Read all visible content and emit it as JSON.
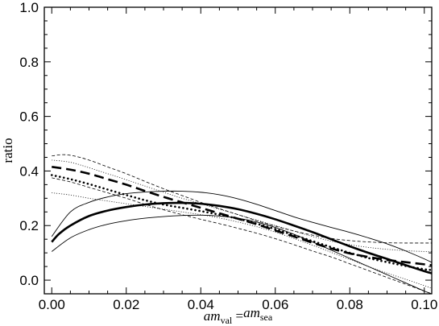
{
  "chart_data": {
    "type": "line",
    "title": "",
    "ylabel": "ratio",
    "xlabel": {
      "parts": [
        {
          "text": "am",
          "style": "italic"
        },
        {
          "text": "val",
          "style": "sub"
        },
        {
          "text": " =",
          "style": "normal"
        },
        {
          "text": "am",
          "style": "italic"
        },
        {
          "text": "sea",
          "style": "sub"
        }
      ]
    },
    "xlim": [
      -0.002,
      0.102
    ],
    "ylim": [
      -0.05,
      1.0
    ],
    "xticks": [
      0.0,
      0.02,
      0.04,
      0.06,
      0.08,
      0.1
    ],
    "xtick_labels": [
      "0.00",
      "0.02",
      "0.04",
      "0.06",
      "0.08",
      "0.10"
    ],
    "yticks": [
      0.0,
      0.2,
      0.4,
      0.6,
      0.8,
      1.0
    ],
    "ytick_labels": [
      "0.0",
      "0.2",
      "0.4",
      "0.6",
      "0.8",
      "1.0"
    ],
    "grid": false,
    "series": [
      {
        "style": "thick-solid",
        "x": [
          0.0,
          0.002,
          0.005,
          0.01,
          0.015,
          0.02,
          0.025,
          0.03,
          0.035,
          0.04,
          0.045,
          0.05,
          0.055,
          0.06,
          0.065,
          0.07,
          0.075,
          0.08,
          0.085,
          0.09,
          0.095,
          0.1,
          0.102
        ],
        "y": [
          0.14,
          0.17,
          0.2,
          0.235,
          0.255,
          0.268,
          0.277,
          0.282,
          0.283,
          0.28,
          0.272,
          0.26,
          0.243,
          0.223,
          0.2,
          0.176,
          0.15,
          0.124,
          0.1,
          0.078,
          0.055,
          0.033,
          0.025
        ]
      },
      {
        "style": "thin-solid-upper",
        "x": [
          0.0,
          0.005,
          0.01,
          0.015,
          0.02,
          0.025,
          0.03,
          0.035,
          0.04,
          0.045,
          0.05,
          0.055,
          0.06,
          0.065,
          0.07,
          0.075,
          0.08,
          0.085,
          0.09,
          0.095,
          0.1,
          0.102
        ],
        "y": [
          0.16,
          0.25,
          0.285,
          0.305,
          0.317,
          0.323,
          0.326,
          0.326,
          0.322,
          0.313,
          0.298,
          0.278,
          0.255,
          0.232,
          0.212,
          0.193,
          0.175,
          0.155,
          0.133,
          0.107,
          0.078,
          0.065
        ]
      },
      {
        "style": "thin-solid-lower",
        "x": [
          0.0,
          0.005,
          0.01,
          0.015,
          0.02,
          0.025,
          0.03,
          0.035,
          0.04,
          0.045,
          0.05,
          0.055,
          0.06,
          0.065,
          0.07,
          0.075,
          0.08,
          0.085,
          0.09,
          0.095,
          0.1,
          0.102
        ],
        "y": [
          0.105,
          0.155,
          0.185,
          0.205,
          0.218,
          0.227,
          0.233,
          0.237,
          0.238,
          0.235,
          0.227,
          0.213,
          0.193,
          0.168,
          0.14,
          0.11,
          0.08,
          0.05,
          0.02,
          -0.01,
          -0.04,
          -0.05
        ]
      },
      {
        "style": "thick-dashed",
        "x": [
          0.0,
          0.005,
          0.01,
          0.015,
          0.02,
          0.025,
          0.03,
          0.035,
          0.04,
          0.045,
          0.05,
          0.055,
          0.06,
          0.065,
          0.07,
          0.075,
          0.08,
          0.085,
          0.09,
          0.095,
          0.1,
          0.102
        ],
        "y": [
          0.415,
          0.405,
          0.39,
          0.37,
          0.35,
          0.327,
          0.305,
          0.285,
          0.265,
          0.245,
          0.225,
          0.205,
          0.182,
          0.16,
          0.137,
          0.116,
          0.098,
          0.085,
          0.074,
          0.066,
          0.058,
          0.055
        ]
      },
      {
        "style": "thin-dashed-upper",
        "x": [
          0.0,
          0.003,
          0.006,
          0.01,
          0.015,
          0.02,
          0.025,
          0.03,
          0.035,
          0.04,
          0.045,
          0.05,
          0.055,
          0.06,
          0.065,
          0.07,
          0.075,
          0.08,
          0.085,
          0.09,
          0.095,
          0.1,
          0.102
        ],
        "y": [
          0.455,
          0.46,
          0.455,
          0.44,
          0.415,
          0.39,
          0.362,
          0.335,
          0.31,
          0.285,
          0.262,
          0.24,
          0.218,
          0.198,
          0.18,
          0.165,
          0.153,
          0.145,
          0.14,
          0.137,
          0.136,
          0.136,
          0.136
        ]
      },
      {
        "style": "thin-dashed-lower",
        "x": [
          0.0,
          0.005,
          0.01,
          0.015,
          0.02,
          0.025,
          0.03,
          0.035,
          0.04,
          0.045,
          0.05,
          0.055,
          0.06,
          0.065,
          0.07,
          0.075,
          0.08,
          0.085,
          0.09,
          0.095,
          0.1,
          0.102
        ],
        "y": [
          0.375,
          0.36,
          0.34,
          0.32,
          0.3,
          0.278,
          0.258,
          0.24,
          0.223,
          0.207,
          0.19,
          0.172,
          0.152,
          0.13,
          0.107,
          0.085,
          0.06,
          0.035,
          0.01,
          -0.015,
          -0.04,
          -0.05
        ]
      },
      {
        "style": "thick-dotted",
        "x": [
          0.0,
          0.005,
          0.01,
          0.015,
          0.02,
          0.025,
          0.03,
          0.035,
          0.04,
          0.045,
          0.05,
          0.055,
          0.06,
          0.065,
          0.07,
          0.075,
          0.08,
          0.085,
          0.09,
          0.095,
          0.1,
          0.102
        ],
        "y": [
          0.385,
          0.37,
          0.352,
          0.332,
          0.312,
          0.293,
          0.277,
          0.265,
          0.253,
          0.24,
          0.225,
          0.207,
          0.187,
          0.165,
          0.143,
          0.121,
          0.1,
          0.081,
          0.066,
          0.052,
          0.04,
          0.037
        ]
      },
      {
        "style": "thin-dotted-upper",
        "x": [
          0.0,
          0.005,
          0.01,
          0.015,
          0.02,
          0.025,
          0.03,
          0.035,
          0.04,
          0.045,
          0.05,
          0.055,
          0.06,
          0.065,
          0.07,
          0.075,
          0.08,
          0.085,
          0.09,
          0.095,
          0.1,
          0.102
        ],
        "y": [
          0.44,
          0.432,
          0.412,
          0.39,
          0.368,
          0.345,
          0.322,
          0.3,
          0.28,
          0.26,
          0.24,
          0.22,
          0.2,
          0.18,
          0.16,
          0.143,
          0.13,
          0.12,
          0.113,
          0.108,
          0.105,
          0.104
        ]
      },
      {
        "style": "thin-dotted-lower",
        "x": [
          0.0,
          0.005,
          0.01,
          0.015,
          0.02,
          0.025,
          0.03,
          0.035,
          0.04,
          0.045,
          0.05,
          0.055,
          0.06,
          0.065,
          0.07,
          0.075,
          0.08,
          0.085,
          0.09,
          0.095,
          0.1,
          0.102
        ],
        "y": [
          0.32,
          0.312,
          0.3,
          0.29,
          0.28,
          0.27,
          0.26,
          0.25,
          0.24,
          0.228,
          0.213,
          0.196,
          0.176,
          0.153,
          0.128,
          0.102,
          0.076,
          0.05,
          0.026,
          0.003,
          -0.02,
          -0.03
        ]
      }
    ]
  }
}
